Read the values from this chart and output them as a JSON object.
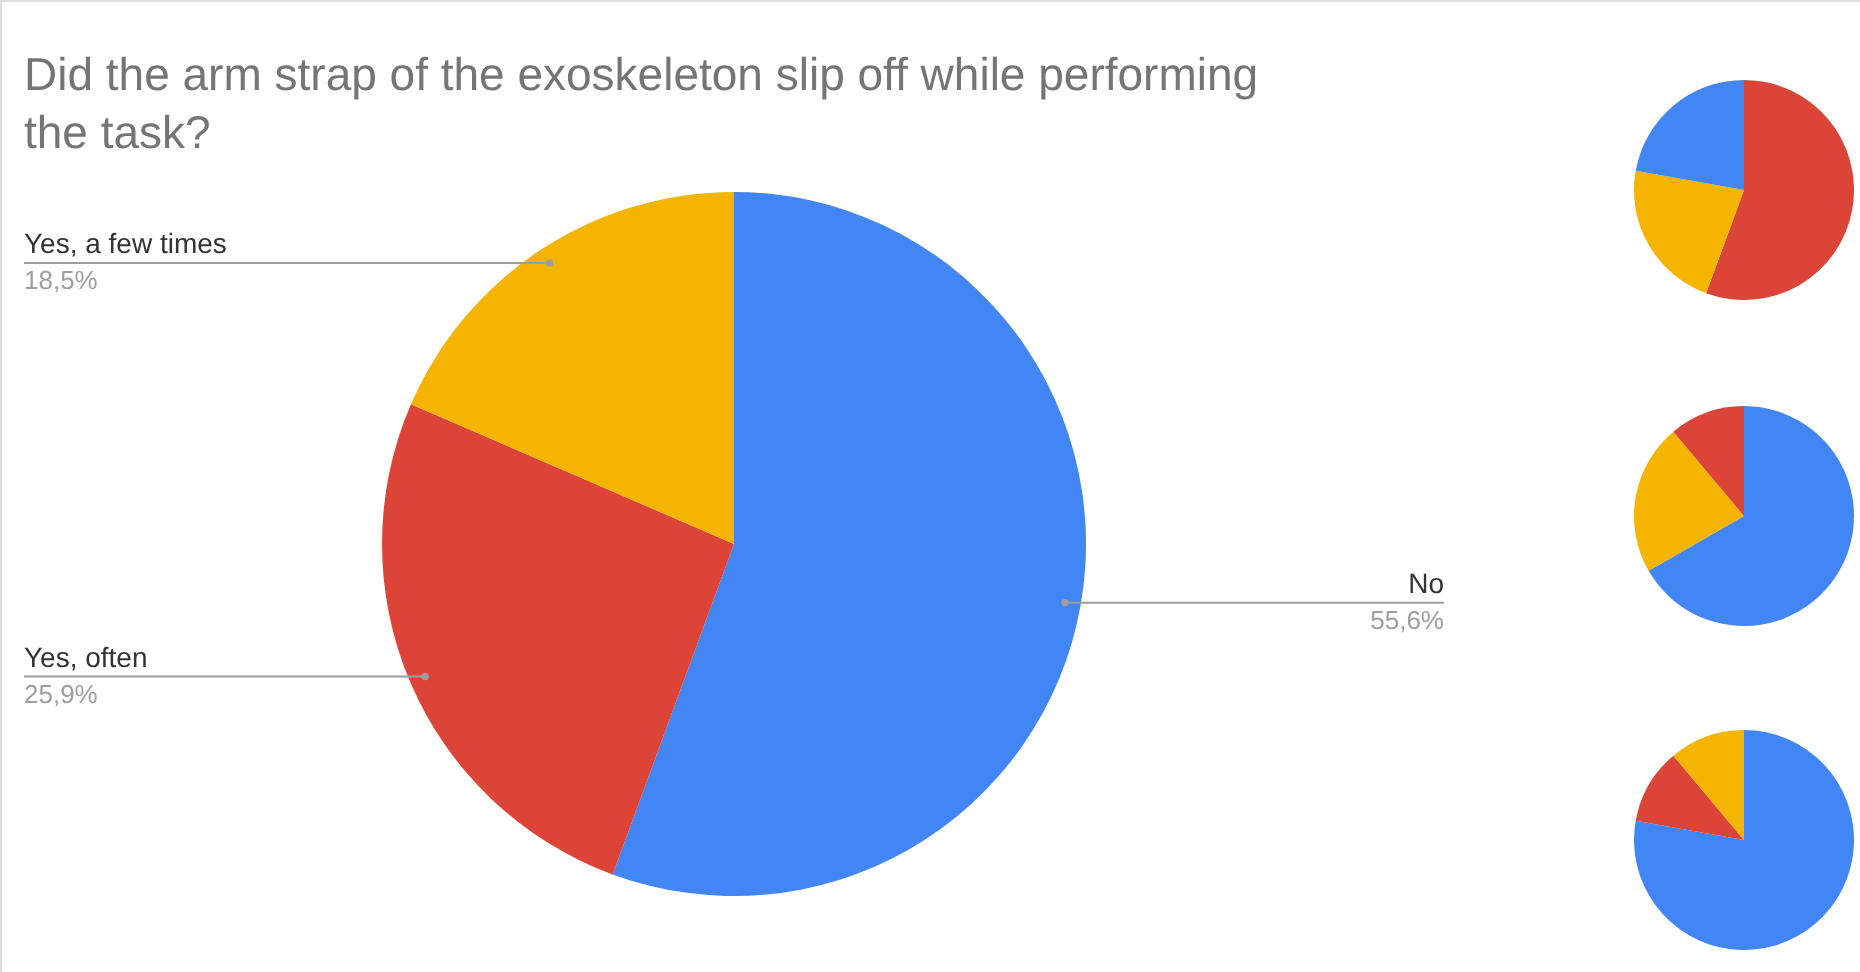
{
  "chart_data": [
    {
      "type": "pie",
      "title": "Did the arm strap of the exoskeleton slip off while performing the task?",
      "categories": [
        "No",
        "Yes, often",
        "Yes, a few times"
      ],
      "values": [
        55.6,
        25.9,
        18.5
      ],
      "colors": [
        "#4285f4",
        "#db4437",
        "#f4b400"
      ],
      "value_labels": [
        "55,6%",
        "25,9%",
        "18,5%"
      ]
    },
    {
      "type": "pie",
      "categories": [
        null,
        null,
        null
      ],
      "values": [
        55.6,
        22.2,
        22.2
      ],
      "colors": [
        "#db4437",
        "#f4b400",
        "#4285f4"
      ]
    },
    {
      "type": "pie",
      "categories": [
        null,
        null,
        null
      ],
      "values": [
        66.7,
        22.2,
        11.1
      ],
      "colors": [
        "#4285f4",
        "#f4b400",
        "#db4437"
      ]
    },
    {
      "type": "pie",
      "categories": [
        null,
        null,
        null
      ],
      "values": [
        77.8,
        11.1,
        11.1
      ],
      "colors": [
        "#4285f4",
        "#db4437",
        "#f4b400"
      ]
    }
  ]
}
